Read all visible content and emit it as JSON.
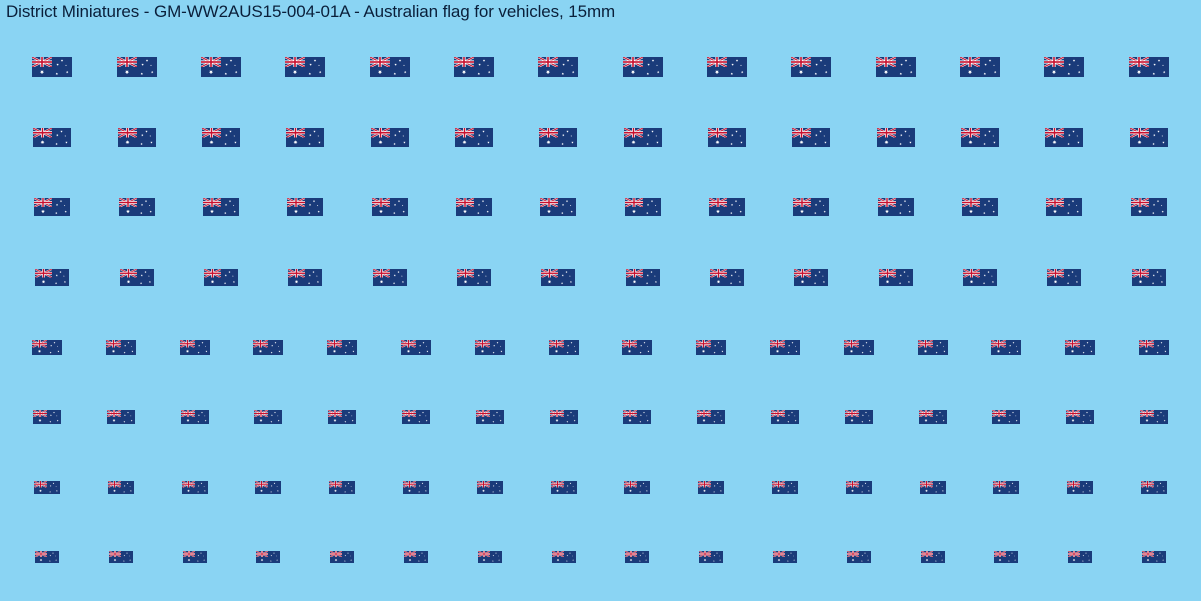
{
  "title": "District Miniatures - GM-WW2AUS15-004-01A - Australian flag for vehicles, 15mm",
  "background_color": "#8AD4F3",
  "title_color": "#0A1F3A",
  "title_fontsize": 17,
  "flag": {
    "field_color": "#1A3B7A",
    "union_jack": {
      "st_andrew_color": "#FFFFFF",
      "st_george_color": "#C8102E",
      "fimbriation_color": "#FFFFFF"
    },
    "star_color": "#FFFFFF"
  },
  "layout": {
    "rows": [
      {
        "count": 14,
        "flag_w": 40,
        "flag_h": 20
      },
      {
        "count": 14,
        "flag_w": 38,
        "flag_h": 19
      },
      {
        "count": 14,
        "flag_w": 36,
        "flag_h": 18
      },
      {
        "count": 14,
        "flag_w": 34,
        "flag_h": 17
      },
      {
        "count": 16,
        "flag_w": 30,
        "flag_h": 15
      },
      {
        "count": 16,
        "flag_w": 28,
        "flag_h": 14
      },
      {
        "count": 16,
        "flag_w": 26,
        "flag_h": 13
      },
      {
        "count": 16,
        "flag_w": 24,
        "flag_h": 12
      }
    ]
  }
}
